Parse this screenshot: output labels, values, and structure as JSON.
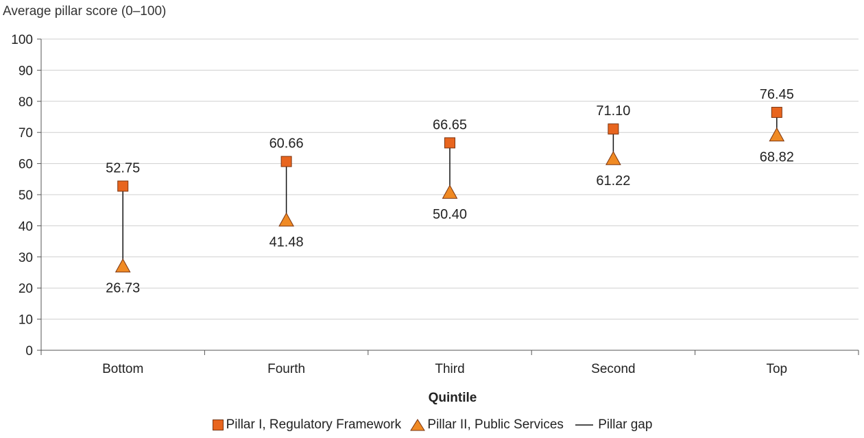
{
  "chart_data": {
    "type": "scatter",
    "ylabel": "Average pillar score (0–100)",
    "xlabel": "Quintile",
    "categories": [
      "Bottom",
      "Fourth",
      "Third",
      "Second",
      "Top"
    ],
    "ylim": [
      0,
      100
    ],
    "yticks": [
      0,
      10,
      20,
      30,
      40,
      50,
      60,
      70,
      80,
      90,
      100
    ],
    "grid": true,
    "legend_position": "bottom",
    "series": [
      {
        "name": "Pillar I, Regulatory Framework",
        "marker": "square",
        "color": "#e8651e",
        "values": [
          52.75,
          60.66,
          66.65,
          71.1,
          76.45
        ],
        "labels": [
          "52.75",
          "60.66",
          "66.65",
          "71.10",
          "76.45"
        ]
      },
      {
        "name": "Pillar II, Public Services",
        "marker": "triangle",
        "color": "#f08a24",
        "values": [
          26.73,
          41.48,
          50.4,
          61.22,
          68.82
        ],
        "labels": [
          "26.73",
          "41.48",
          "50.40",
          "61.22",
          "68.82"
        ]
      }
    ],
    "gap_series_name": "Pillar gap"
  }
}
